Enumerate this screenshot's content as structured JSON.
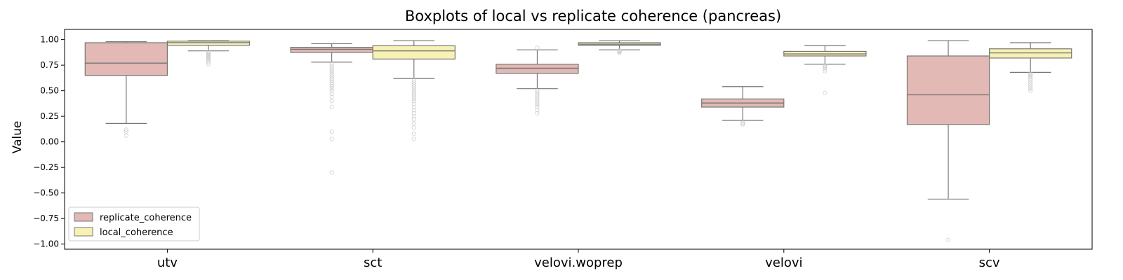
{
  "chart_data": {
    "type": "box",
    "title": "Boxplots of local vs replicate coherence (pancreas)",
    "xlabel": "",
    "ylabel": "Value",
    "ylim": [
      -1.05,
      1.1
    ],
    "yticks": [
      1.0,
      0.75,
      0.5,
      0.25,
      0.0,
      -0.25,
      -0.5,
      -0.75,
      -1.0
    ],
    "ytick_labels": [
      "1.00",
      "0.75",
      "0.50",
      "0.25",
      "0.00",
      "−0.25",
      "−0.50",
      "−0.75",
      "−1.00"
    ],
    "categories": [
      "utv",
      "sct",
      "velovi.woprep",
      "velovi",
      "scv"
    ],
    "legend_position": "lower-left",
    "colors": {
      "replicate_coherence": "#e2b9b4",
      "local_coherence": "#f7f2b3",
      "edge": "#777777",
      "outlier": "#c9c9c9"
    },
    "series": [
      {
        "name": "replicate_coherence",
        "boxes": [
          {
            "whislo": 0.18,
            "q1": 0.65,
            "med": 0.77,
            "q3": 0.97,
            "whishi": 0.98,
            "fliers": [
              0.12,
              0.1,
              0.06
            ]
          },
          {
            "whislo": 0.78,
            "q1": 0.875,
            "med": 0.905,
            "q3": 0.925,
            "whishi": 0.96,
            "fliers": [
              0.76,
              0.74,
              0.72,
              0.7,
              0.68,
              0.66,
              0.64,
              0.62,
              0.6,
              0.58,
              0.56,
              0.54,
              0.52,
              0.5,
              0.47,
              0.44,
              0.4,
              0.34,
              0.1,
              0.03,
              -0.3
            ]
          },
          {
            "whislo": 0.52,
            "q1": 0.67,
            "med": 0.72,
            "q3": 0.76,
            "whishi": 0.9,
            "fliers": [
              0.5,
              0.48,
              0.46,
              0.44,
              0.42,
              0.4,
              0.38,
              0.36,
              0.34,
              0.31,
              0.28,
              0.92
            ]
          },
          {
            "whislo": 0.21,
            "q1": 0.34,
            "med": 0.38,
            "q3": 0.42,
            "whishi": 0.54,
            "fliers": [
              0.19,
              0.18,
              0.17
            ]
          },
          {
            "whislo": -0.56,
            "q1": 0.17,
            "med": 0.46,
            "q3": 0.84,
            "whishi": 0.99,
            "fliers": [
              -0.96
            ]
          }
        ]
      },
      {
        "name": "local_coherence",
        "boxes": [
          {
            "whislo": 0.89,
            "q1": 0.945,
            "med": 0.97,
            "q3": 0.985,
            "whishi": 0.99,
            "fliers": [
              0.88,
              0.87,
              0.86,
              0.85,
              0.84,
              0.83,
              0.82,
              0.81,
              0.8,
              0.78,
              0.76
            ]
          },
          {
            "whislo": 0.62,
            "q1": 0.81,
            "med": 0.89,
            "q3": 0.94,
            "whishi": 0.99,
            "fliers": [
              0.6,
              0.58,
              0.56,
              0.54,
              0.52,
              0.5,
              0.48,
              0.46,
              0.44,
              0.42,
              0.4,
              0.37,
              0.34,
              0.31,
              0.28,
              0.25,
              0.22,
              0.18,
              0.14,
              0.08,
              0.03
            ]
          },
          {
            "whislo": 0.9,
            "q1": 0.945,
            "med": 0.955,
            "q3": 0.97,
            "whishi": 0.99,
            "fliers": [
              0.895,
              0.89,
              0.885,
              0.88,
              0.87
            ]
          },
          {
            "whislo": 0.76,
            "q1": 0.84,
            "med": 0.86,
            "q3": 0.885,
            "whishi": 0.94,
            "fliers": [
              0.75,
              0.74,
              0.73,
              0.71,
              0.69,
              0.48
            ]
          },
          {
            "whislo": 0.68,
            "q1": 0.82,
            "med": 0.87,
            "q3": 0.91,
            "whishi": 0.97,
            "fliers": [
              0.67,
              0.66,
              0.65,
              0.64,
              0.62,
              0.6,
              0.58,
              0.56,
              0.54,
              0.52,
              0.5
            ]
          }
        ]
      }
    ]
  }
}
